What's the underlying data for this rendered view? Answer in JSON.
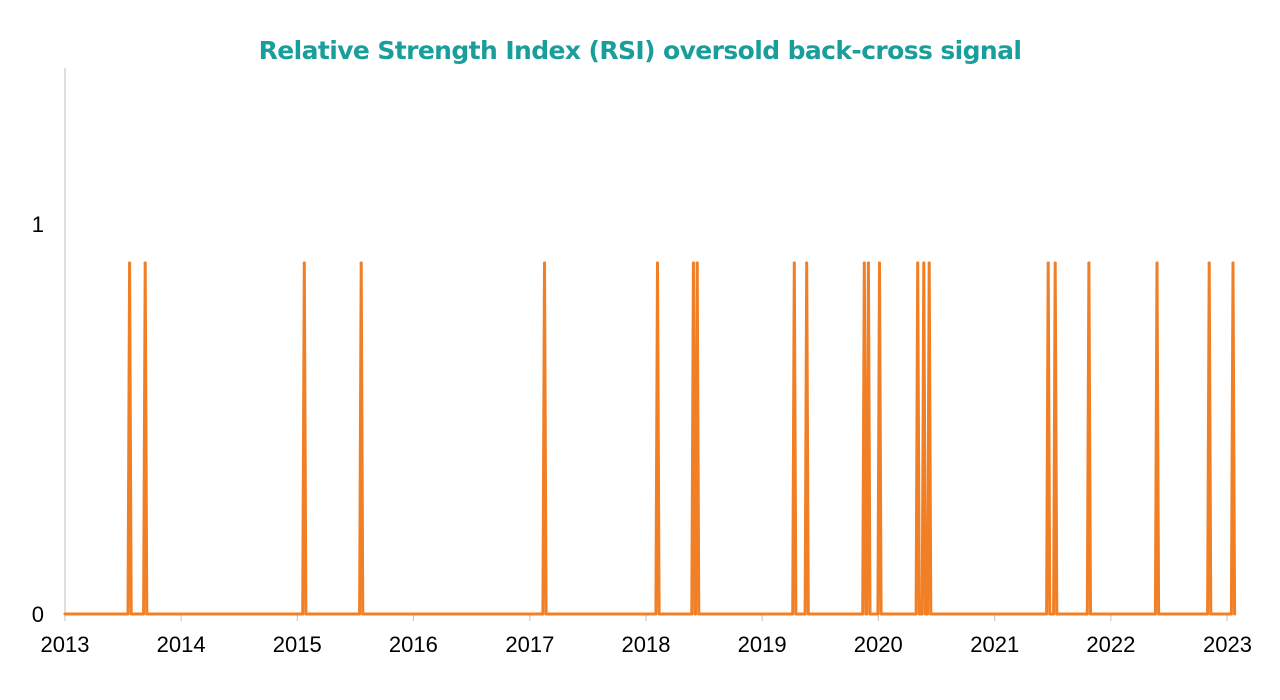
{
  "chart_data": {
    "type": "line",
    "title": "Relative Strength Index (RSI) oversold back-cross signal",
    "xlabel": "",
    "ylabel": "",
    "x_axis": {
      "type": "date",
      "min": "2013-01-01",
      "max": "2023-01-01",
      "tick_labels": [
        "2013",
        "2014",
        "2015",
        "2016",
        "2017",
        "2018",
        "2019",
        "2020",
        "2021",
        "2022",
        "2023"
      ]
    },
    "y_axis": {
      "min": 0,
      "max": 1.4,
      "tick_values": [
        0,
        1
      ],
      "tick_labels": [
        "0",
        "1"
      ]
    },
    "grid": false,
    "legend": "none",
    "colors": {
      "title": "#1a9e9b",
      "series": "#f07f26",
      "axis": "#bfbfbf"
    },
    "baseline": 0,
    "peak_value": 0.9,
    "series": [
      {
        "signal_dates": [
          "2013-07-23",
          "2013-09-10",
          "2015-01-23",
          "2015-07-21",
          "2017-02-16",
          "2018-02-06",
          "2018-05-30",
          "2018-06-11",
          "2019-04-12",
          "2019-05-21",
          "2019-11-18",
          "2019-12-01",
          "2020-01-05",
          "2020-05-04",
          "2020-05-23",
          "2020-06-09",
          "2021-06-18",
          "2021-07-10",
          "2021-10-24",
          "2022-05-26",
          "2022-11-06",
          "2023-01-20"
        ]
      }
    ]
  }
}
